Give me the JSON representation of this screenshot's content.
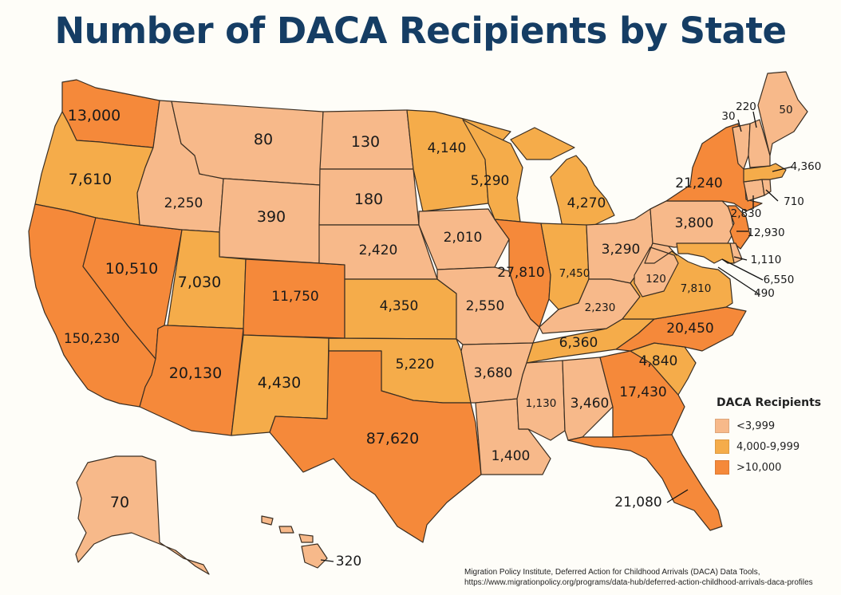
{
  "title": "Number of DACA Recipients by State",
  "legend": {
    "title": "DACA Recipients",
    "items": [
      {
        "label": "<3,999",
        "color": "#f7b98a"
      },
      {
        "label": "4,000-9,999",
        "color": "#f5ac4a"
      },
      {
        "label": ">10,000",
        "color": "#f5893a"
      }
    ]
  },
  "states": {
    "WA": {
      "value": "13,000",
      "tier": 2
    },
    "OR": {
      "value": "7,610",
      "tier": 1
    },
    "CA": {
      "value": "150,230",
      "tier": 2
    },
    "NV": {
      "value": "10,510",
      "tier": 2
    },
    "ID": {
      "value": "2,250",
      "tier": 0
    },
    "MT": {
      "value": "80",
      "tier": 0
    },
    "WY": {
      "value": "390",
      "tier": 0
    },
    "UT": {
      "value": "7,030",
      "tier": 1
    },
    "AZ": {
      "value": "20,130",
      "tier": 2
    },
    "CO": {
      "value": "11,750",
      "tier": 2
    },
    "NM": {
      "value": "4,430",
      "tier": 1
    },
    "ND": {
      "value": "130",
      "tier": 0
    },
    "SD": {
      "value": "180",
      "tier": 0
    },
    "NE": {
      "value": "2,420",
      "tier": 0
    },
    "KS": {
      "value": "4,350",
      "tier": 1
    },
    "OK": {
      "value": "5,220",
      "tier": 1
    },
    "TX": {
      "value": "87,620",
      "tier": 2
    },
    "MN": {
      "value": "4,140",
      "tier": 1
    },
    "IA": {
      "value": "2,010",
      "tier": 0
    },
    "MO": {
      "value": "2,550",
      "tier": 0
    },
    "AR": {
      "value": "3,680",
      "tier": 0
    },
    "LA": {
      "value": "1,400",
      "tier": 0
    },
    "WI": {
      "value": "5,290",
      "tier": 1
    },
    "IL": {
      "value": "27,810",
      "tier": 2
    },
    "MI": {
      "value": "4,270",
      "tier": 1
    },
    "IN": {
      "value": "7,450",
      "tier": 1
    },
    "OH": {
      "value": "3,290",
      "tier": 0
    },
    "KY": {
      "value": "2,230",
      "tier": 0
    },
    "TN": {
      "value": "6,360",
      "tier": 1
    },
    "MS": {
      "value": "1,130",
      "tier": 0
    },
    "AL": {
      "value": "3,460",
      "tier": 0
    },
    "GA": {
      "value": "17,430",
      "tier": 2
    },
    "FL": {
      "value": "21,080",
      "tier": 2
    },
    "SC": {
      "value": "4,840",
      "tier": 1
    },
    "NC": {
      "value": "20,450",
      "tier": 2
    },
    "VA": {
      "value": "7,810",
      "tier": 1
    },
    "WV": {
      "value": "120",
      "tier": 0
    },
    "PA": {
      "value": "3,800",
      "tier": 0
    },
    "NY": {
      "value": "21,240",
      "tier": 2
    },
    "NJ": {
      "value": "12,930",
      "tier": 2
    },
    "DE": {
      "value": "1,110",
      "tier": 0
    },
    "MD": {
      "value": "6,550",
      "tier": 1
    },
    "DC": {
      "value": "490",
      "tier": 0
    },
    "CT": {
      "value": "2,830",
      "tier": 0
    },
    "RI": {
      "value": "710",
      "tier": 0
    },
    "MA": {
      "value": "4,360",
      "tier": 1
    },
    "VT": {
      "value": "30",
      "tier": 0
    },
    "NH": {
      "value": "220",
      "tier": 0
    },
    "ME": {
      "value": "50",
      "tier": 0
    },
    "AK": {
      "value": "70",
      "tier": 0
    },
    "HI": {
      "value": "320",
      "tier": 0
    }
  },
  "source": {
    "line1": "Migration Policy Institute, Deferred Action for Childhood Arrivals (DACA) Data Tools,",
    "line2": "https://www.migrationpolicy.org/programs/data-hub/deferred-action-childhood-arrivals-daca-profiles"
  }
}
